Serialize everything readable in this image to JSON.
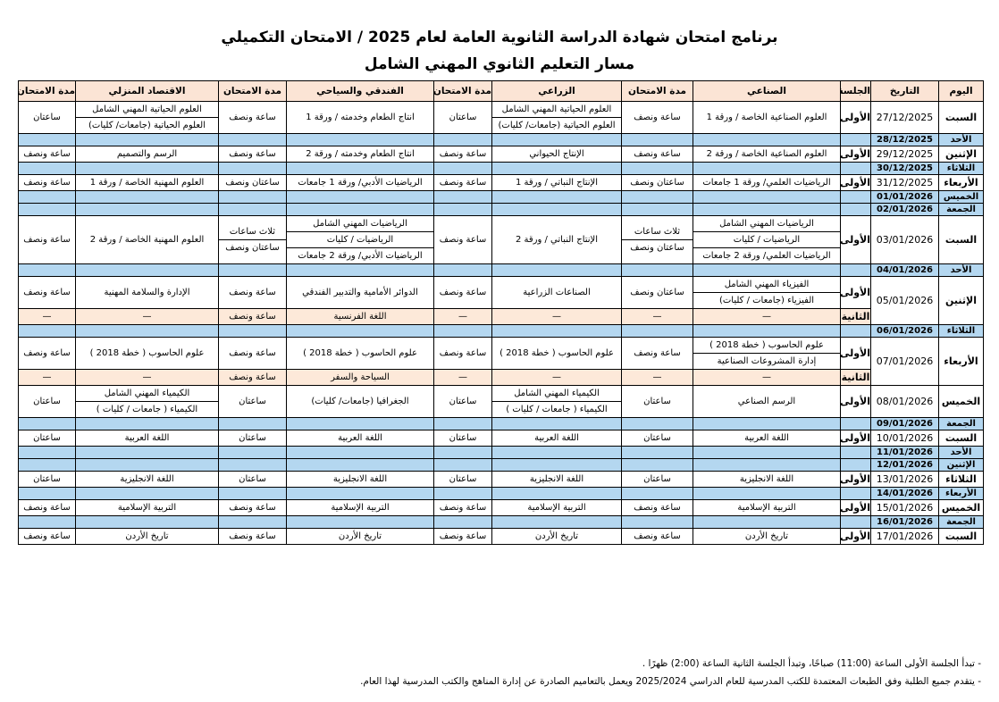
{
  "header": {
    "title": "برنامج امتحان شهادة الدراسة الثانوية العامة لعام 2025 / الامتحان التكميلي",
    "subtitle": "مسار التعليم الثانوي المهني الشامل"
  },
  "table": {
    "headers": [
      "اليوم",
      "التاريخ",
      "الجلسة",
      "الصناعي",
      "مدة الامتحان",
      "الزراعي",
      "مدة الامتحان",
      "الفندقي والسياحي",
      "مدة الامتحان",
      "الاقتصاد المنزلي",
      "مدة الامتحان"
    ],
    "rows": [
      {
        "day": "السبت",
        "date": "27/12/2025",
        "sessions": [
          {
            "session": "الأولى",
            "cells": [
              [
                "العلوم الصناعية الخاصة / ورقة 1"
              ],
              [
                "ساعة ونصف"
              ],
              [
                "العلوم الحياتية المهني الشامل",
                "العلوم الحياتية (جامعات/ كليات)"
              ],
              [
                "ساعتان"
              ],
              [
                "انتاج الطعام وخدمته / ورقة 1"
              ],
              [
                "ساعة ونصف"
              ],
              [
                "العلوم الحياتية المهني الشامل",
                "العلوم الحياتية (جامعات/ كليات)"
              ],
              [
                "ساعتان"
              ]
            ]
          }
        ]
      },
      {
        "day": "الأحد",
        "date": "28/12/2025"
      },
      {
        "day": "الإثنين",
        "date": "29/12/2025",
        "sessions": [
          {
            "session": "الأولى",
            "cells": [
              [
                "العلوم الصناعية الخاصة / ورقة 2"
              ],
              [
                "ساعة ونصف"
              ],
              [
                "الإنتاج الحيواني"
              ],
              [
                "ساعة ونصف"
              ],
              [
                "انتاج الطعام وخدمته / ورقة 2"
              ],
              [
                "ساعة ونصف"
              ],
              [
                "الرسم والتصميم"
              ],
              [
                "ساعة ونصف"
              ]
            ]
          }
        ]
      },
      {
        "day": "الثلاثاء",
        "date": "30/12/2025"
      },
      {
        "day": "الأربعاء",
        "date": "31/12/2025",
        "sessions": [
          {
            "session": "الأولى",
            "cells": [
              [
                "الرياضيات العلمي/ ورقة 1 جامعات"
              ],
              [
                "ساعتان ونصف"
              ],
              [
                "الإنتاج النباتي / ورقة 1"
              ],
              [
                "ساعة ونصف"
              ],
              [
                "الرياضيات الأدبي/ ورقة 1 جامعات"
              ],
              [
                "ساعتان ونصف"
              ],
              [
                "العلوم المهنية الخاصة / ورقة 1"
              ],
              [
                "ساعة ونصف"
              ]
            ]
          }
        ]
      },
      {
        "day": "الخميس",
        "date": "01/01/2026"
      },
      {
        "day": "الجمعة",
        "date": "02/01/2026"
      },
      {
        "day": "السبت",
        "date": "03/01/2026",
        "sessions": [
          {
            "session": "الأولى",
            "cells": [
              [
                "الرياضيات المهني الشامل",
                "الرياضيات / كليات",
                "الرياضيات العلمي/ ورقة 2 جامعات"
              ],
              [
                "ثلاث ساعات",
                "ساعتان ونصف"
              ],
              [
                "الإنتاج النباتي / ورقة 2"
              ],
              [
                "ساعة ونصف"
              ],
              [
                "الرياضيات المهني الشامل",
                "الرياضيات / كليات",
                "الرياضيات الأدبي/ ورقة 2 جامعات"
              ],
              [
                "ثلاث ساعات",
                "ساعتان ونصف"
              ],
              [
                "العلوم المهنية الخاصة / ورقة 2"
              ],
              [
                "ساعة ونصف"
              ]
            ]
          }
        ]
      },
      {
        "day": "الأحد",
        "date": "04/01/2026"
      },
      {
        "day": "الإثنين",
        "date": "05/01/2026",
        "sessions": [
          {
            "session": "الأولى",
            "cells": [
              [
                "الفيزياء المهني الشامل",
                "الفيزياء (جامعات / كليات)"
              ],
              [
                "ساعتان ونصف"
              ],
              [
                "الصناعات الزراعية"
              ],
              [
                "ساعة ونصف"
              ],
              [
                "الدوائر الأمامية والتدبير الفندقي"
              ],
              [
                "ساعة ونصف"
              ],
              [
                "الإدارة والسلامة المهنية"
              ],
              [
                "ساعة ونصف"
              ]
            ]
          },
          {
            "session": "الثانية",
            "cells": [
              [
                "—"
              ],
              [
                "—"
              ],
              [
                "—"
              ],
              [
                "—"
              ],
              [
                "اللغة الفرنسية"
              ],
              [
                "ساعة ونصف"
              ],
              [
                "—"
              ],
              [
                "—"
              ]
            ]
          }
        ]
      },
      {
        "day": "الثلاثاء",
        "date": "06/01/2026"
      },
      {
        "day": "الأربعاء",
        "date": "07/01/2026",
        "sessions": [
          {
            "session": "الأولى",
            "cells": [
              [
                "علوم الحاسوب ( خطة 2018 )",
                "إدارة المشروعات الصناعية"
              ],
              [
                "ساعة ونصف"
              ],
              [
                "علوم الحاسوب ( خطة 2018 )"
              ],
              [
                "ساعة ونصف"
              ],
              [
                "علوم الحاسوب ( خطة 2018 )"
              ],
              [
                "ساعة ونصف"
              ],
              [
                "علوم الحاسوب ( خطة 2018 )"
              ],
              [
                "ساعة ونصف"
              ]
            ]
          },
          {
            "session": "الثانية",
            "cells": [
              [
                "—"
              ],
              [
                "—"
              ],
              [
                "—"
              ],
              [
                "—"
              ],
              [
                "السياحة والسفر"
              ],
              [
                "ساعة ونصف"
              ],
              [
                "—"
              ],
              [
                "—"
              ]
            ]
          }
        ]
      },
      {
        "day": "الخميس",
        "date": "08/01/2026",
        "sessions": [
          {
            "session": "الأولى",
            "cells": [
              [
                "الرسم الصناعي"
              ],
              [
                "ساعتان"
              ],
              [
                "الكيمياء المهني الشامل",
                "الكيمياء ( جامعات / كليات )"
              ],
              [
                "ساعتان"
              ],
              [
                "الجغرافيا (جامعات/ كليات)"
              ],
              [
                "ساعتان"
              ],
              [
                "الكيمياء المهني الشامل",
                "الكيمياء ( جامعات / كليات )"
              ],
              [
                "ساعتان"
              ]
            ]
          }
        ]
      },
      {
        "day": "الجمعة",
        "date": "09/01/2026"
      },
      {
        "day": "السبت",
        "date": "10/01/2026",
        "sessions": [
          {
            "session": "الأولى",
            "cells": [
              [
                "اللغة العربية"
              ],
              [
                "ساعتان"
              ],
              [
                "اللغة العربية"
              ],
              [
                "ساعتان"
              ],
              [
                "اللغة العربية"
              ],
              [
                "ساعتان"
              ],
              [
                "اللغة العربية"
              ],
              [
                "ساعتان"
              ]
            ]
          }
        ]
      },
      {
        "day": "الأحد",
        "date": "11/01/2026"
      },
      {
        "day": "الإثنين",
        "date": "12/01/2026"
      },
      {
        "day": "الثلاثاء",
        "date": "13/01/2026",
        "sessions": [
          {
            "session": "الأولى",
            "cells": [
              [
                "اللغة الانجليزية"
              ],
              [
                "ساعتان"
              ],
              [
                "اللغة الانجليزية"
              ],
              [
                "ساعتان"
              ],
              [
                "اللغة الانجليزية"
              ],
              [
                "ساعتان"
              ],
              [
                "اللغة الانجليزية"
              ],
              [
                "ساعتان"
              ]
            ]
          }
        ]
      },
      {
        "day": "الأربعاء",
        "date": "14/01/2026"
      },
      {
        "day": "الخميس",
        "date": "15/01/2026",
        "sessions": [
          {
            "session": "الأولى",
            "cells": [
              [
                "التربية الإسلامية"
              ],
              [
                "ساعة ونصف"
              ],
              [
                "التربية الإسلامية"
              ],
              [
                "ساعة ونصف"
              ],
              [
                "التربية الإسلامية"
              ],
              [
                "ساعة ونصف"
              ],
              [
                "التربية الإسلامية"
              ],
              [
                "ساعة ونصف"
              ]
            ]
          }
        ]
      },
      {
        "day": "الجمعة",
        "date": "16/01/2026"
      },
      {
        "day": "السبت",
        "date": "17/01/2026",
        "sessions": [
          {
            "session": "الأولى",
            "cells": [
              [
                "تاريخ الأردن"
              ],
              [
                "ساعة ونصف"
              ],
              [
                "تاريخ الأردن"
              ],
              [
                "ساعة ونصف"
              ],
              [
                "تاريخ الأردن"
              ],
              [
                "ساعة ونصف"
              ],
              [
                "تاريخ الأردن"
              ],
              [
                "ساعة ونصف"
              ]
            ]
          }
        ]
      }
    ]
  },
  "notes": [
    "- تبدأ الجلسة الأولى الساعة (11:00) صباحًا، وتبدأ الجلسة الثانية الساعة (2:00) ظهرًا .",
    "- يتقدم جميع الطلبة وفق الطبعات المعتمدة للكتب المدرسية للعام الدراسي 2025/2024 ويعمل بالتعاميم الصادرة عن إدارة المناهج والكتب المدرسية لهذا العام."
  ]
}
